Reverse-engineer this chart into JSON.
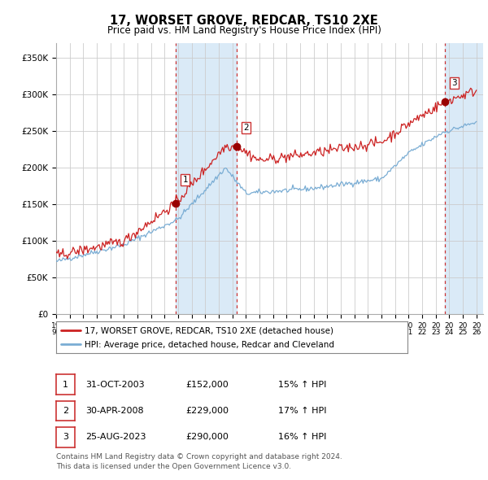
{
  "title": "17, WORSET GROVE, REDCAR, TS10 2XE",
  "subtitle": "Price paid vs. HM Land Registry's House Price Index (HPI)",
  "ylabel_ticks": [
    "£0",
    "£50K",
    "£100K",
    "£150K",
    "£200K",
    "£250K",
    "£300K",
    "£350K"
  ],
  "ylim": [
    0,
    370000
  ],
  "xlim_start": 1995.0,
  "xlim_end": 2026.5,
  "sale_dates": [
    2003.83,
    2008.33,
    2023.65
  ],
  "sale_prices": [
    152000,
    229000,
    290000
  ],
  "sale_labels": [
    "1",
    "2",
    "3"
  ],
  "vspan1_start": 2003.83,
  "vspan1_end": 2008.33,
  "vspan2_start": 2023.65,
  "vspan2_end": 2026.5,
  "hpi_line_color": "#7aadd4",
  "price_line_color": "#cc2222",
  "sale_marker_color": "#990000",
  "vline_color": "#cc3333",
  "vspan_color": "#daeaf7",
  "grid_color": "#cccccc",
  "bg_color": "#ffffff",
  "legend_label_red": "17, WORSET GROVE, REDCAR, TS10 2XE (detached house)",
  "legend_label_blue": "HPI: Average price, detached house, Redcar and Cleveland",
  "table_rows": [
    {
      "num": "1",
      "date": "31-OCT-2003",
      "price": "£152,000",
      "hpi": "15% ↑ HPI"
    },
    {
      "num": "2",
      "date": "30-APR-2008",
      "price": "£229,000",
      "hpi": "17% ↑ HPI"
    },
    {
      "num": "3",
      "date": "25-AUG-2023",
      "price": "£290,000",
      "hpi": "16% ↑ HPI"
    }
  ],
  "footnote1": "Contains HM Land Registry data © Crown copyright and database right 2024.",
  "footnote2": "This data is licensed under the Open Government Licence v3.0."
}
